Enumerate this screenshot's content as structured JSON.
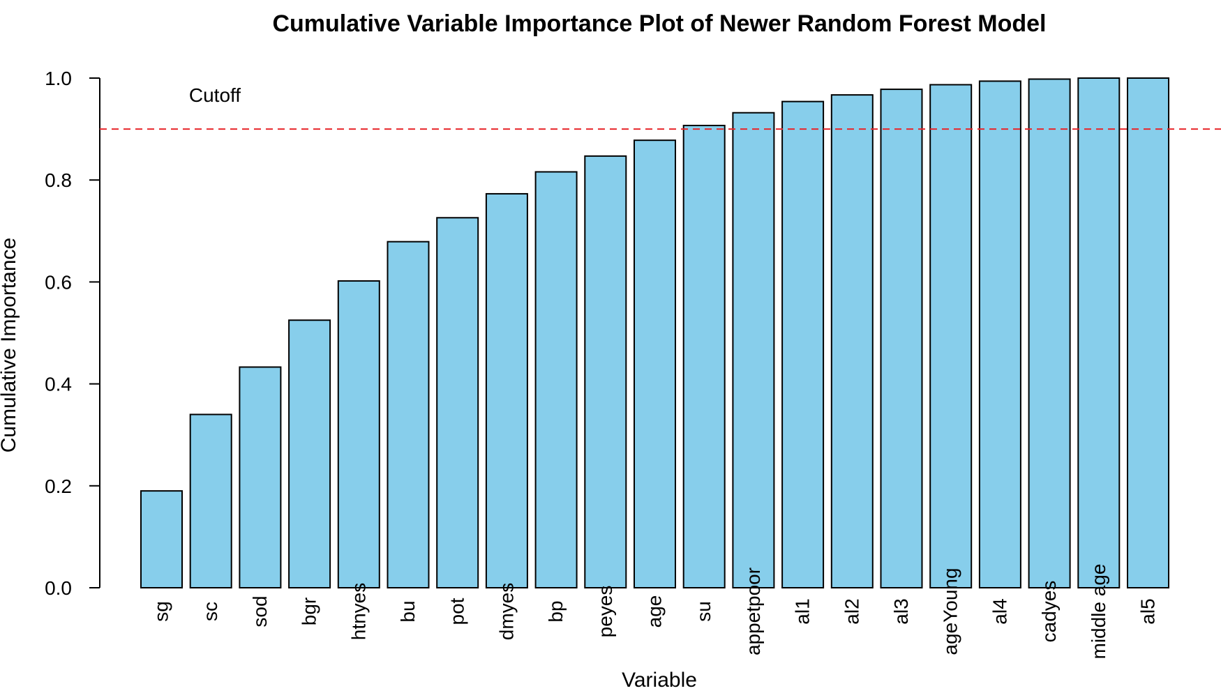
{
  "chart_data": {
    "type": "bar",
    "title": "Cumulative Variable Importance Plot of Newer Random Forest Model",
    "xlabel": "Variable",
    "ylabel": "Cumulative Importance",
    "ylim": [
      0,
      1
    ],
    "yticks": [
      "0.0",
      "0.2",
      "0.4",
      "0.6",
      "0.8",
      "1.0"
    ],
    "categories": [
      "sg",
      "sc",
      "sod",
      "bgr",
      "htnyes",
      "bu",
      "pot",
      "dmyes",
      "bp",
      "peyes",
      "age",
      "su",
      "appetpoor",
      "al1",
      "al2",
      "al3",
      "ageYoung",
      "al4",
      "cadyes",
      "middle age",
      "al5"
    ],
    "values": [
      0.19,
      0.34,
      0.433,
      0.525,
      0.602,
      0.679,
      0.726,
      0.773,
      0.816,
      0.847,
      0.878,
      0.907,
      0.932,
      0.954,
      0.967,
      0.978,
      0.987,
      0.994,
      0.998,
      1.0,
      1.0
    ],
    "cutoff": {
      "value": 0.9,
      "label": "Cutoff",
      "color": "#e8262a",
      "style": "dashed"
    },
    "bar_color": "#87ceeb",
    "bar_border": "#000000",
    "grid": false,
    "legend": "none"
  }
}
